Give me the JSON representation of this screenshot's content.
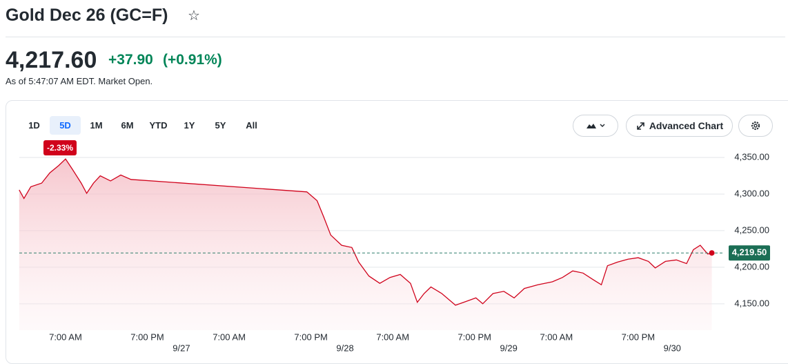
{
  "header": {
    "title": "Gold Dec 26 (GC=F)"
  },
  "quote": {
    "price": "4,217.60",
    "change": "+37.90",
    "change_percent": "(+0.91%)",
    "timestamp": "As of 5:47:07 AM EDT. Market Open."
  },
  "toolbar": {
    "ranges": [
      "1D",
      "5D",
      "1M",
      "6M",
      "YTD",
      "1Y",
      "5Y",
      "All"
    ],
    "selected": 1,
    "range_change": "-2.33%",
    "advanced_chart": "Advanced Chart"
  },
  "chart_data": {
    "type": "line",
    "color": "#d0021b",
    "grid": true,
    "x": [
      0.2,
      0.9,
      1.9,
      3.5,
      4.7,
      6.0,
      7.0,
      8.0,
      9.3,
      10.1,
      11.1,
      12.1,
      13.6,
      15.1,
      16.6,
      42.4,
      43.9,
      44.9,
      45.9,
      47.5,
      49.0,
      50.0,
      51.5,
      53.1,
      54.6,
      56.1,
      57.6,
      58.6,
      59.6,
      60.6,
      62.2,
      64.2,
      65.7,
      67.2,
      68.2,
      69.7,
      71.3,
      72.8,
      74.3,
      76.3,
      78.4,
      79.9,
      81.4,
      82.9,
      84.4,
      85.6,
      86.5,
      88.0,
      89.5,
      91.0,
      92.5,
      93.5,
      95.0,
      96.6,
      98.1,
      99.1,
      100.1,
      101.2,
      101.8
    ],
    "values": [
      4305.7,
      4294,
      4310,
      4315,
      4329,
      4339,
      4348,
      4334,
      4315,
      4301,
      4315,
      4325,
      4318,
      4326,
      4320,
      4303,
      4291,
      4268,
      4244,
      4230,
      4227,
      4207,
      4188,
      4178,
      4186,
      4190,
      4178,
      4152,
      4164,
      4173,
      4164,
      4148,
      4153,
      4158,
      4150,
      4164,
      4167,
      4158,
      4171,
      4176,
      4180,
      4186,
      4195,
      4192,
      4183,
      4176,
      4202,
      4207,
      4211,
      4213,
      4208,
      4199,
      4208,
      4210,
      4205,
      4224,
      4230,
      4218,
      4219.5
    ],
    "xlim": [
      0,
      103
    ],
    "xticks": [
      {
        "value": 7,
        "label": "7:00 AM"
      },
      {
        "value": 19,
        "label": "7:00 PM"
      },
      {
        "value": 31,
        "label": "7:00 AM"
      },
      {
        "value": 43,
        "label": "7:00 PM"
      },
      {
        "value": 55,
        "label": "7:00 AM"
      },
      {
        "value": 67,
        "label": "7:00 PM"
      },
      {
        "value": 79,
        "label": "7:00 AM"
      },
      {
        "value": 91,
        "label": "7:00 PM"
      }
    ],
    "date_ticks": [
      {
        "value": 24,
        "label": "9/27"
      },
      {
        "value": 48,
        "label": "9/28"
      },
      {
        "value": 72,
        "label": "9/29"
      },
      {
        "value": 96,
        "label": "9/30"
      }
    ],
    "ylim": [
      4130,
      4370
    ],
    "yticks": [
      {
        "value": 4150,
        "label": "4,150.00"
      },
      {
        "value": 4200,
        "label": "4,200.00"
      },
      {
        "value": 4250,
        "label": "4,250.00"
      },
      {
        "value": 4300,
        "label": "4,300.00"
      },
      {
        "value": 4350,
        "label": "4,350.00"
      }
    ],
    "last": {
      "value": 4219.5,
      "label": "4,219.50"
    }
  }
}
